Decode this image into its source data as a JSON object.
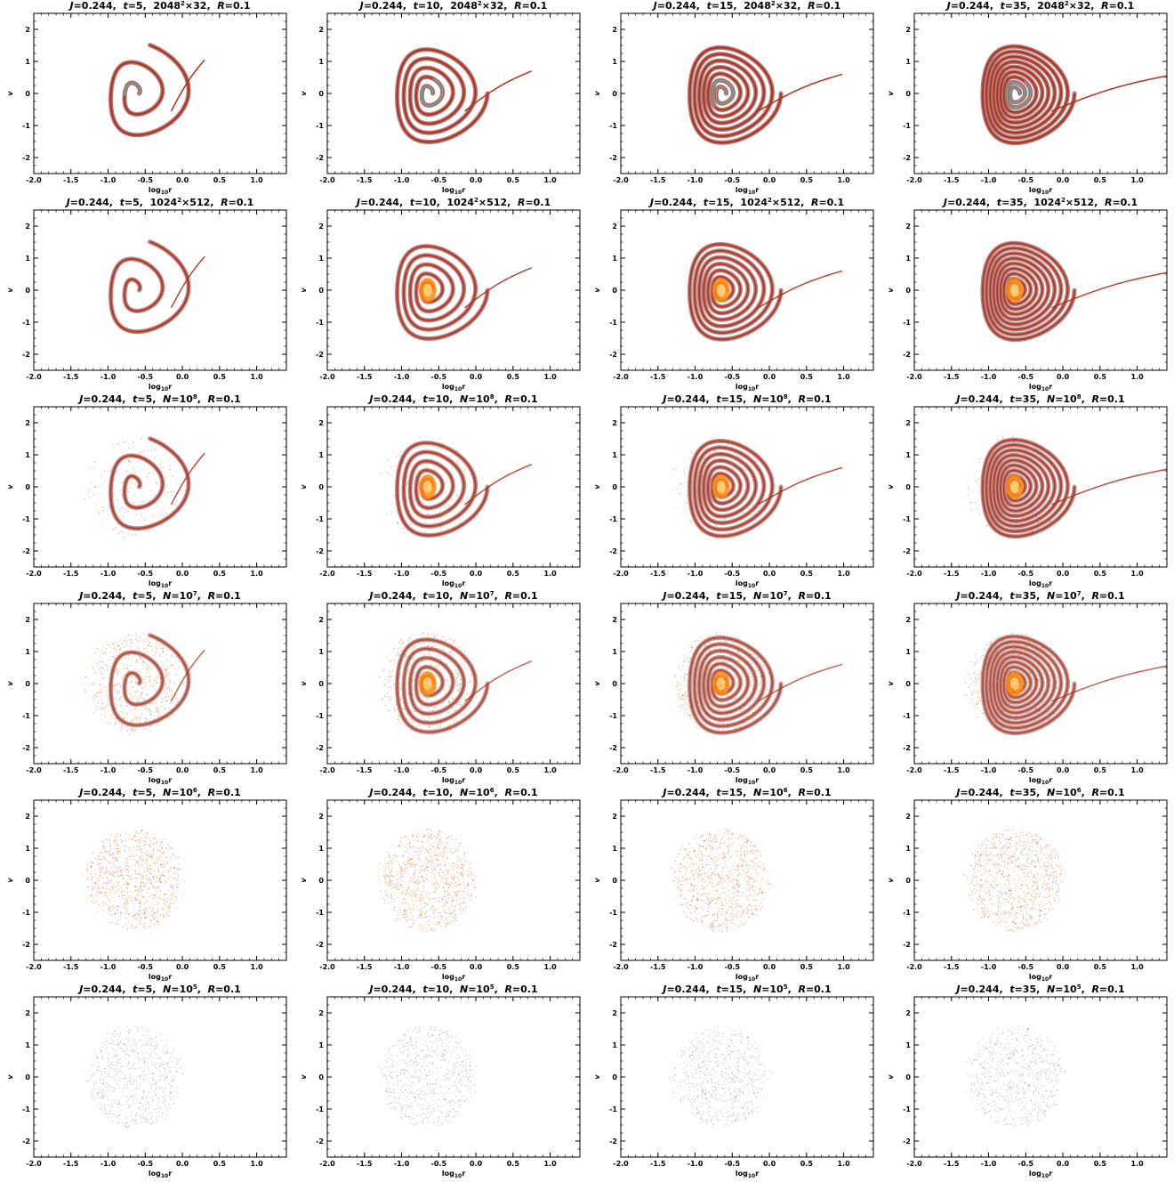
{
  "chart_data": {
    "type": "scatter",
    "layout": "6 rows x 4 columns grid of phase-space density plots",
    "x_axis": {
      "label": "log10r",
      "label_text": "log",
      "label_sub": "10",
      "label_tail": "r",
      "range": [
        -2.0,
        1.4
      ],
      "ticks": [
        "-2.0",
        "-1.5",
        "-1.0",
        "-0.5",
        "0.0",
        "0.5",
        "1.0"
      ]
    },
    "y_axis": {
      "label": "v",
      "range": [
        -2.5,
        2.5
      ],
      "ticks": [
        "-2",
        "-1",
        "0",
        "1",
        "2"
      ]
    },
    "common": {
      "J": "0.244",
      "R": "0.1"
    },
    "times": [
      "5",
      "10",
      "15",
      "35"
    ],
    "rows": [
      {
        "resolution": "2048",
        "res_sup": "2",
        "res_tail": "×32",
        "kind": "grid"
      },
      {
        "resolution": "1024",
        "res_sup": "2",
        "res_tail": "×512",
        "kind": "grid"
      },
      {
        "resolution": "N=10",
        "res_sup": "8",
        "res_tail": "",
        "kind": "particles"
      },
      {
        "resolution": "N=10",
        "res_sup": "7",
        "res_tail": "",
        "kind": "particles"
      },
      {
        "resolution": "N=10",
        "res_sup": "6",
        "res_tail": "",
        "kind": "particles"
      },
      {
        "resolution": "N=10",
        "res_sup": "5",
        "res_tail": "",
        "kind": "particles"
      }
    ],
    "titles": [
      "J=0.244, t=5, 2048²×32, R=0.1",
      "J=0.244, t=10, 2048²×32, R=0.1",
      "J=0.244, t=15, 2048²×32, R=0.1",
      "J=0.244, t=35, 2048²×32, R=0.1",
      "J=0.244, t=5, 1024²×512, R=0.1",
      "J=0.244, t=10, 1024²×512, R=0.1",
      "J=0.244, t=15, 1024²×512, R=0.1",
      "J=0.244, t=35, 1024²×512, R=0.1",
      "J=0.244, t=5, N=10⁸, R=0.1",
      "J=0.244, t=10, N=10⁸, R=0.1",
      "J=0.244, t=15, N=10⁸, R=0.1",
      "J=0.244, t=35, N=10⁸, R=0.1",
      "J=0.244, t=5, N=10⁷, R=0.1",
      "J=0.244, t=10, N=10⁷, R=0.1",
      "J=0.244, t=15, N=10⁷, R=0.1",
      "J=0.244, t=35, N=10⁷, R=0.1",
      "J=0.244, t=5, N=10⁶, R=0.1",
      "J=0.244, t=10, N=10⁶, R=0.1",
      "J=0.244, t=15, N=10⁶, R=0.1",
      "J=0.244, t=35, N=10⁶, R=0.1",
      "J=0.244, t=5, N=10⁵, R=0.1",
      "J=0.244, t=10, N=10⁵, R=0.1",
      "J=0.244, t=15, N=10⁵, R=0.1",
      "J=0.244, t=35, N=10⁵, R=0.1"
    ],
    "structure": {
      "center": [
        -0.65,
        0.0
      ],
      "tail_tip_by_time": {
        "5": [
          0.3,
          1.05
        ],
        "10": [
          0.75,
          0.7
        ],
        "15": [
          0.98,
          0.6
        ],
        "35": [
          1.4,
          0.55
        ]
      }
    },
    "colors": {
      "dark": "#6b0d0d",
      "mid": "#b3301a",
      "bright": "#ff8a10",
      "core": "#ffd27a",
      "accent_blue": "#3d7fd9",
      "accent_cyan": "#57d6d0",
      "noise": "#555555"
    }
  }
}
